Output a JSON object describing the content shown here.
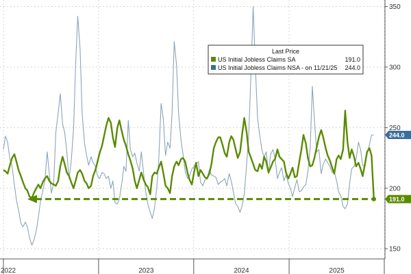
{
  "chart_data": {
    "type": "line",
    "title": "",
    "xlabel": "",
    "ylabel": "",
    "ylim": [
      145,
      352
    ],
    "y_ticks": [
      150,
      200,
      250,
      300,
      350
    ],
    "x_tick_labels": [
      "2022",
      "2023",
      "2024",
      "2025"
    ],
    "grid": true,
    "legend_position": "top-right",
    "legend": {
      "header": "Last Price",
      "entries": [
        {
          "label": "US Initial Jobless Claims SA",
          "value": "191.0"
        },
        {
          "label": "US Initial Jobless Claims NSA - on 11/21/25",
          "value": "244.0"
        }
      ]
    },
    "last_value_tags": [
      "244.0",
      "191.0"
    ],
    "reference_line": {
      "value": 191,
      "style": "dashed arrow",
      "color": "#5a8a00"
    },
    "colors": {
      "sa": "#5a8a00",
      "nsa": "#8aa4b8",
      "nsa_tag": "#3a6e9a",
      "sa_tag": "#5a8a00"
    },
    "series": [
      {
        "name": "US Initial Jobless Claims SA",
        "date_start": "2022-01-01",
        "date_end": "2025-11-22",
        "values": [
          215,
          214,
          212,
          219,
          225,
          228,
          222,
          215,
          210,
          205,
          200,
          198,
          193,
          192,
          196,
          200,
          203,
          200,
          205,
          208,
          210,
          206,
          204,
          203,
          202,
          206,
          218,
          226,
          220,
          213,
          210,
          205,
          200,
          206,
          213,
          215,
          212,
          206,
          204,
          200,
          202,
          210,
          215,
          222,
          229,
          235,
          243,
          252,
          258,
          254,
          242,
          234,
          250,
          256,
          247,
          240,
          235,
          228,
          223,
          216,
          206,
          200,
          207,
          213,
          207,
          203,
          201,
          195,
          210,
          213,
          212,
          217,
          222,
          213,
          202,
          200,
          196,
          210,
          218,
          222,
          219,
          224,
          225,
          222,
          213,
          207,
          203,
          213,
          221,
          210,
          215,
          212,
          209,
          208,
          212,
          220,
          233,
          238,
          242,
          242,
          236,
          229,
          226,
          238,
          243,
          240,
          232,
          225,
          230,
          245,
          258,
          246,
          230,
          225,
          220,
          215,
          214,
          220,
          216,
          226,
          222,
          213,
          217,
          222,
          224,
          232,
          226,
          224,
          222,
          213,
          208,
          212,
          217,
          209,
          210,
          222,
          232,
          244,
          237,
          225,
          218,
          219,
          225,
          234,
          242,
          248,
          242,
          233,
          227,
          223,
          217,
          212,
          224,
          227,
          224,
          232,
          264,
          238,
          225,
          232,
          226,
          218,
          221,
          216,
          210,
          220,
          230,
          233,
          227,
          191
        ]
      },
      {
        "name": "US Initial Jobless Claims NSA",
        "date_start": "2022-01-01",
        "date_end": "2025-11-22",
        "values": [
          232,
          243,
          238,
          224,
          218,
          203,
          190,
          182,
          171,
          168,
          172,
          168,
          159,
          153,
          157,
          165,
          176,
          189,
          198,
          206,
          230,
          212,
          196,
          204,
          246,
          262,
          278,
          253,
          246,
          230,
          208,
          222,
          249,
          302,
          342,
          315,
          262,
          237,
          227,
          219,
          226,
          221,
          218,
          210,
          208,
          213,
          212,
          208,
          210,
          200,
          206,
          188,
          187,
          191,
          204,
          218,
          214,
          256,
          232,
          226,
          229,
          221,
          214,
          230,
          212,
          197,
          187,
          180,
          175,
          184,
          200,
          224,
          270,
          258,
          227,
          238,
          233,
          262,
          321,
          302,
          262,
          240,
          228,
          214,
          208,
          210,
          216,
          218,
          220,
          222,
          205,
          202,
          207,
          208,
          215,
          211,
          210,
          209,
          203,
          205,
          206,
          208,
          202,
          212,
          206,
          197,
          187,
          185,
          180,
          186,
          195,
          220,
          244,
          296,
          350,
          303,
          258,
          244,
          231,
          226,
          230,
          212,
          228,
          232,
          225,
          208,
          213,
          217,
          206,
          211,
          204,
          200,
          193,
          201,
          207,
          197,
          198,
          201,
          203,
          214,
          234,
          284,
          256,
          230,
          232,
          212,
          220,
          224,
          221,
          218,
          213,
          214,
          206,
          197,
          194,
          185,
          183,
          187,
          204,
          216,
          218,
          224,
          238,
          232,
          219,
          218,
          229,
          236,
          244,
          244
        ]
      }
    ]
  }
}
